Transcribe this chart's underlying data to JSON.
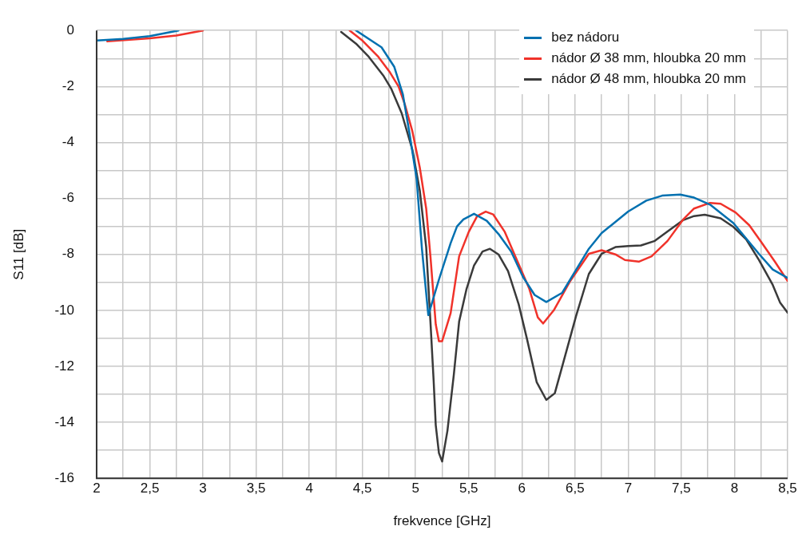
{
  "chart_data": {
    "type": "line",
    "xlabel": "frekvence [GHz]",
    "ylabel": "S11 [dB]",
    "xlim": [
      2,
      8.5
    ],
    "ylim": [
      -16,
      0
    ],
    "xticks": [
      {
        "value": 2,
        "label": "2"
      },
      {
        "value": 2.25,
        "label": null
      },
      {
        "value": 2.5,
        "label": "2,5"
      },
      {
        "value": 2.75,
        "label": null
      },
      {
        "value": 3,
        "label": "3"
      },
      {
        "value": 3.25,
        "label": null
      },
      {
        "value": 3.5,
        "label": "3,5"
      },
      {
        "value": 3.75,
        "label": null
      },
      {
        "value": 4,
        "label": "4"
      },
      {
        "value": 4.25,
        "label": null
      },
      {
        "value": 4.5,
        "label": "4,5"
      },
      {
        "value": 4.75,
        "label": null
      },
      {
        "value": 5,
        "label": "5"
      },
      {
        "value": 5.25,
        "label": null
      },
      {
        "value": 5.5,
        "label": "5,5"
      },
      {
        "value": 5.75,
        "label": null
      },
      {
        "value": 6,
        "label": "6"
      },
      {
        "value": 6.25,
        "label": null
      },
      {
        "value": 6.5,
        "label": "6,5"
      },
      {
        "value": 6.75,
        "label": null
      },
      {
        "value": 7,
        "label": "7"
      },
      {
        "value": 7.25,
        "label": null
      },
      {
        "value": 7.5,
        "label": "7,5"
      },
      {
        "value": 7.75,
        "label": null
      },
      {
        "value": 8,
        "label": "8"
      },
      {
        "value": 8.25,
        "label": null
      },
      {
        "value": 8.5,
        "label": "8,5"
      }
    ],
    "yticks": [
      {
        "value": -16,
        "label": "-16"
      },
      {
        "value": -15,
        "label": null
      },
      {
        "value": -14,
        "label": "-14"
      },
      {
        "value": -13,
        "label": null
      },
      {
        "value": -12,
        "label": "-12"
      },
      {
        "value": -11,
        "label": null
      },
      {
        "value": -10,
        "label": "-10"
      },
      {
        "value": -9,
        "label": null
      },
      {
        "value": -8,
        "label": "-8"
      },
      {
        "value": -7,
        "label": null
      },
      {
        "value": -6,
        "label": "-6"
      },
      {
        "value": -5,
        "label": null
      },
      {
        "value": -4,
        "label": "-4"
      },
      {
        "value": -3,
        "label": null
      },
      {
        "value": -2,
        "label": "-2"
      },
      {
        "value": -1,
        "label": null
      },
      {
        "value": 0,
        "label": "0"
      }
    ],
    "grid": true,
    "legend": "top right",
    "marker": "none",
    "line_style": "solid",
    "series": [
      {
        "name": "bez nádoru",
        "color": "#0070b0",
        "x": [
          2,
          2.25,
          2.5,
          2.77,
          3.5,
          4.44,
          4.68,
          4.8,
          4.88,
          4.94,
          5.01,
          5.06,
          5.12,
          5.22,
          5.33,
          5.39,
          5.45,
          5.55,
          5.67,
          5.78,
          5.9,
          6.01,
          6.12,
          6.23,
          6.38,
          6.63,
          6.75,
          7,
          7.17,
          7.32,
          7.49,
          7.62,
          7.77,
          7.99,
          8.11,
          8.23,
          8.36,
          8.5
        ],
        "values": [
          -0.36,
          -0.3,
          -0.2,
          0,
          null,
          0,
          -0.6,
          -1.3,
          -2.27,
          -3.6,
          -5.3,
          -7.8,
          -10.17,
          -8.9,
          -7.6,
          -7,
          -6.75,
          -6.55,
          -6.8,
          -7.27,
          -7.9,
          -8.8,
          -9.45,
          -9.7,
          -9.37,
          -7.8,
          -7.24,
          -6.47,
          -6.08,
          -5.9,
          -5.86,
          -5.97,
          -6.22,
          -6.88,
          -7.43,
          -7.98,
          -8.54,
          -8.84
        ]
      },
      {
        "name": "nádor Ø 38 mm, hloubka 20 mm",
        "color": "#f0322a",
        "x": [
          2.1,
          2.5,
          2.75,
          3,
          3.5,
          4.38,
          4.5,
          4.65,
          4.76,
          4.84,
          4.9,
          4.97,
          5.04,
          5.1,
          5.14,
          5.19,
          5.22,
          5.25,
          5.33,
          5.41,
          5.5,
          5.58,
          5.66,
          5.73,
          5.84,
          5.95,
          6.07,
          6.15,
          6.2,
          6.3,
          6.45,
          6.63,
          6.75,
          6.88,
          6.97,
          7.1,
          7.22,
          7.37,
          7.52,
          7.62,
          7.77,
          7.87,
          8.01,
          8.14,
          8.26,
          8.38,
          8.5
        ],
        "values": [
          -0.39,
          -0.28,
          -0.18,
          0,
          null,
          0,
          -0.36,
          -0.94,
          -1.5,
          -2,
          -2.65,
          -3.6,
          -4.9,
          -6.36,
          -8.07,
          -10.5,
          -11.1,
          -11.1,
          -10.1,
          -8.07,
          -7.2,
          -6.63,
          -6.47,
          -6.57,
          -7.2,
          -8.17,
          -9.23,
          -10.25,
          -10.47,
          -10,
          -8.98,
          -7.98,
          -7.85,
          -8,
          -8.2,
          -8.26,
          -8.07,
          -7.52,
          -6.74,
          -6.36,
          -6.16,
          -6.19,
          -6.5,
          -6.96,
          -7.6,
          -8.26,
          -8.95
        ]
      },
      {
        "name": "nádor Ø 48 mm, hloubka 20 mm",
        "color": "#3a3a3a",
        "x": [
          4.3,
          4.44,
          4.56,
          4.7,
          4.77,
          4.87,
          4.97,
          5.04,
          5.1,
          5.14,
          5.17,
          5.19,
          5.22,
          5.25,
          5.3,
          5.36,
          5.41,
          5.48,
          5.55,
          5.63,
          5.7,
          5.78,
          5.87,
          5.97,
          6.05,
          6.14,
          6.23,
          6.31,
          6.38,
          6.51,
          6.63,
          6.75,
          6.88,
          7,
          7.12,
          7.25,
          7.37,
          7.52,
          7.62,
          7.72,
          7.87,
          7.99,
          8.11,
          8.23,
          8.36,
          8.43,
          8.5
        ],
        "values": [
          -0.05,
          -0.47,
          -0.94,
          -1.63,
          -2.07,
          -2.96,
          -4.26,
          -5.72,
          -7.74,
          -10.4,
          -12.5,
          -14.1,
          -15.1,
          -15.4,
          -14.3,
          -12.3,
          -10.4,
          -9.23,
          -8.4,
          -7.9,
          -7.8,
          -8,
          -8.6,
          -9.78,
          -11.05,
          -12.57,
          -13.2,
          -12.96,
          -12,
          -10.2,
          -8.7,
          -7.98,
          -7.74,
          -7.7,
          -7.68,
          -7.52,
          -7.18,
          -6.77,
          -6.63,
          -6.58,
          -6.71,
          -7.02,
          -7.46,
          -8.2,
          -9.09,
          -9.73,
          -10.08
        ]
      }
    ]
  }
}
